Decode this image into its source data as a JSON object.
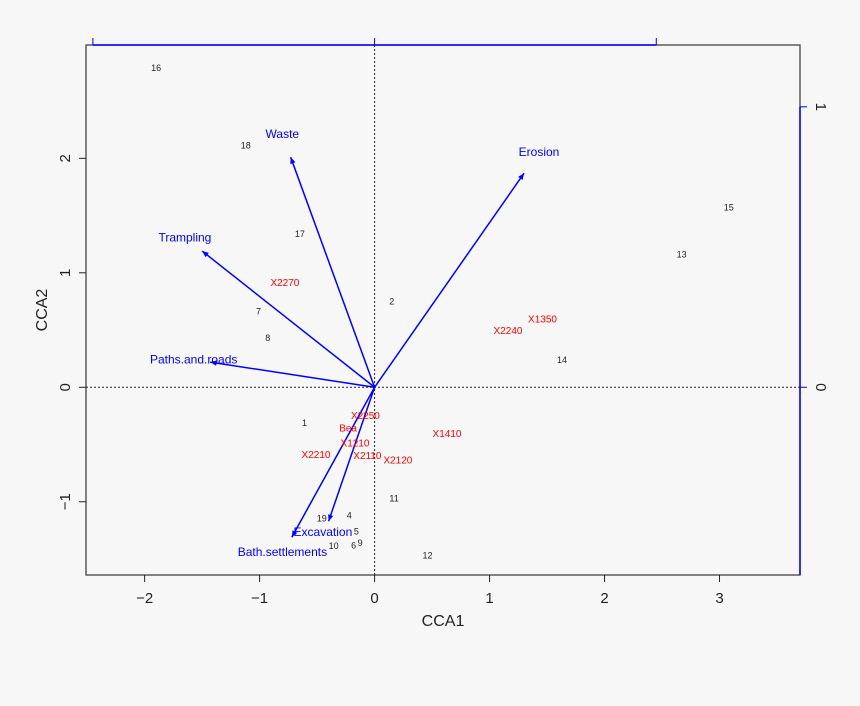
{
  "chart_data": {
    "type": "scatter",
    "subtype": "cca-biplot",
    "title": "",
    "xlabel": "CCA1",
    "ylabel": "CCA2",
    "xlim": [
      -2.51,
      3.7
    ],
    "ylim": [
      -1.64,
      2.99
    ],
    "xticks": [
      -2,
      -1,
      0,
      1,
      2,
      3
    ],
    "yticks": [
      -1,
      0,
      1,
      2
    ],
    "grid": false,
    "reference_lines": {
      "x": 0,
      "y": 0,
      "style": "dotted"
    },
    "secondary_axes": {
      "color": "#0000ff",
      "top_ticks": [
        -1,
        0,
        1
      ],
      "right_ticks": [
        0,
        1
      ],
      "right_tick_labels": [
        "0",
        "1"
      ],
      "scale_ratio": 2.45
    },
    "colors": {
      "sites": "#222222",
      "species": "#ff0000",
      "arrows": "#0000ff",
      "frame": "#444444"
    },
    "sites": [
      {
        "label": "16",
        "x": -1.9,
        "y": 2.79
      },
      {
        "label": "18",
        "x": -1.12,
        "y": 2.11
      },
      {
        "label": "17",
        "x": -0.65,
        "y": 1.34
      },
      {
        "label": "7",
        "x": -1.01,
        "y": 0.66
      },
      {
        "label": "8",
        "x": -0.93,
        "y": 0.43
      },
      {
        "label": "2",
        "x": 0.15,
        "y": 0.75
      },
      {
        "label": "15",
        "x": 3.08,
        "y": 1.57
      },
      {
        "label": "13",
        "x": 2.67,
        "y": 1.16
      },
      {
        "label": "14",
        "x": 1.63,
        "y": 0.24
      },
      {
        "label": "1",
        "x": -0.61,
        "y": -0.31
      },
      {
        "label": "11",
        "x": 0.17,
        "y": -0.97
      },
      {
        "label": "4",
        "x": -0.22,
        "y": -1.12
      },
      {
        "label": "19",
        "x": -0.46,
        "y": -1.2
      },
      {
        "label": "10",
        "x": -0.37,
        "y": -1.32
      },
      {
        "label": "5",
        "x": -0.17,
        "y": -1.28
      },
      {
        "label": "9",
        "x": -0.15,
        "y": -1.34
      },
      {
        "label": "6",
        "x": -0.16,
        "y": -1.37
      },
      {
        "label": "12",
        "x": 0.46,
        "y": -1.47
      }
    ],
    "species": [
      {
        "label": "X2270",
        "x": -0.78,
        "y": 0.91
      },
      {
        "label": "X1350",
        "x": 1.46,
        "y": 0.59
      },
      {
        "label": "X2240",
        "x": 1.16,
        "y": 0.49
      },
      {
        "label": "Bea",
        "x": -0.23,
        "y": -0.31
      },
      {
        "label": "X2250",
        "x": -0.08,
        "y": -0.3
      },
      {
        "label": "X1410",
        "x": 0.63,
        "y": -0.41
      },
      {
        "label": "X1210",
        "x": -0.17,
        "y": -0.52
      },
      {
        "label": "X2110",
        "x": -0.06,
        "y": -0.57
      },
      {
        "label": "X2120",
        "x": 0.2,
        "y": -0.64
      },
      {
        "label": "X2210",
        "x": -0.51,
        "y": -0.59
      }
    ],
    "arrows": [
      {
        "label": "Waste",
        "x": -0.73,
        "y": 2.01
      },
      {
        "label": "Erosion",
        "x": 1.3,
        "y": 1.87
      },
      {
        "label": "Trampling",
        "x": -1.5,
        "y": 1.19
      },
      {
        "label": "Paths.and.roads",
        "x": -1.43,
        "y": 0.22
      },
      {
        "label": "Excavation",
        "x": -0.4,
        "y": -1.17
      },
      {
        "label": "Bath.settlements",
        "x": -0.72,
        "y": -1.31
      }
    ]
  }
}
